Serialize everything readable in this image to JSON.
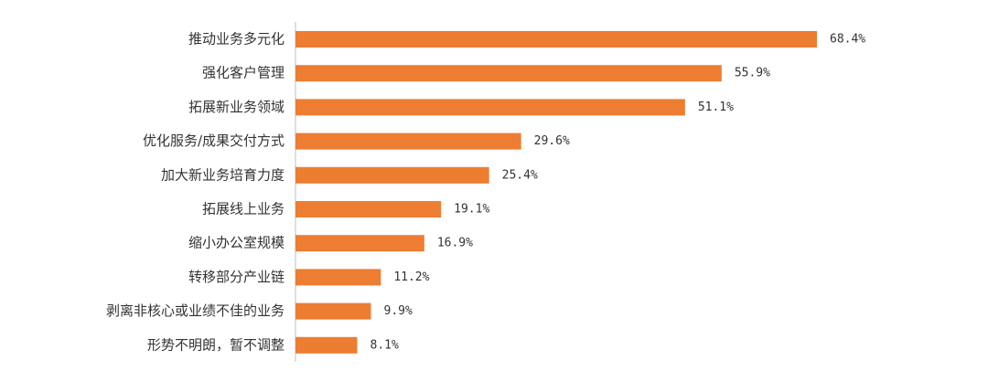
{
  "chart_data": {
    "type": "bar",
    "orientation": "horizontal",
    "categories": [
      "推动业务多元化",
      "强化客户管理",
      "拓展新业务领域",
      "优化服务/成果交付方式",
      "加大新业务培育力度",
      "拓展线上业务",
      "缩小办公室规模",
      "转移部分产业链",
      "剥离非核心或业绩不佳的业务",
      "形势不明朗，暂不调整"
    ],
    "values": [
      68.4,
      55.9,
      51.1,
      29.6,
      25.4,
      19.1,
      16.9,
      11.2,
      9.9,
      8.1
    ],
    "value_labels": [
      "68.4%",
      "55.9%",
      "51.1%",
      "29.6%",
      "25.4%",
      "19.1%",
      "16.9%",
      "11.2%",
      "9.9%",
      "8.1%"
    ],
    "color": "#ED7D31"
  }
}
